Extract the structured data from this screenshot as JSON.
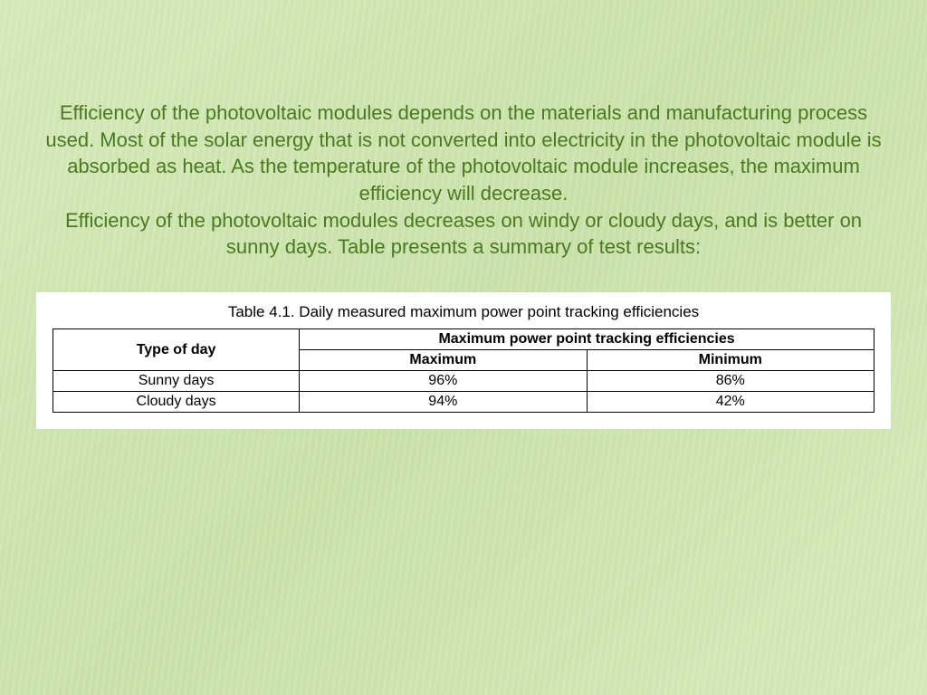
{
  "text": {
    "paragraph1": "Efficiency of the photovoltaic modules depends on the materials and manufacturing process used. Most of the solar energy that is not converted into electricity in the photovoltaic module is absorbed as heat. As the temperature of the photovoltaic module increases, the maximum efficiency will decrease.",
    "paragraph2": "Efficiency of the photovoltaic modules decreases on windy or cloudy days, and is better on sunny days. Table presents a summary of test results:",
    "text_color": "#4a7a1f",
    "fontsize": 22
  },
  "table": {
    "caption": "Table 4.1. Daily measured maximum power point tracking efficiencies",
    "header_main": "Type of day",
    "header_group": "Maximum power point tracking efficiencies",
    "header_sub1": "Maximum",
    "header_sub2": "Minimum",
    "rows": [
      {
        "type": "Sunny days",
        "max": "96%",
        "min": "86%"
      },
      {
        "type": "Cloudy days",
        "max": "94%",
        "min": "42%"
      }
    ],
    "background_color": "#ffffff",
    "border_color": "#000000",
    "text_color": "#000000",
    "fontsize": 16,
    "caption_fontsize": 17,
    "column_widths": [
      "30%",
      "35%",
      "35%"
    ]
  },
  "background": {
    "gradient_color1": "#d4e8b8",
    "gradient_color2": "#c8e0a8",
    "stripe_color": "rgba(255,255,255,0.15)",
    "stripe_angle": 98
  }
}
